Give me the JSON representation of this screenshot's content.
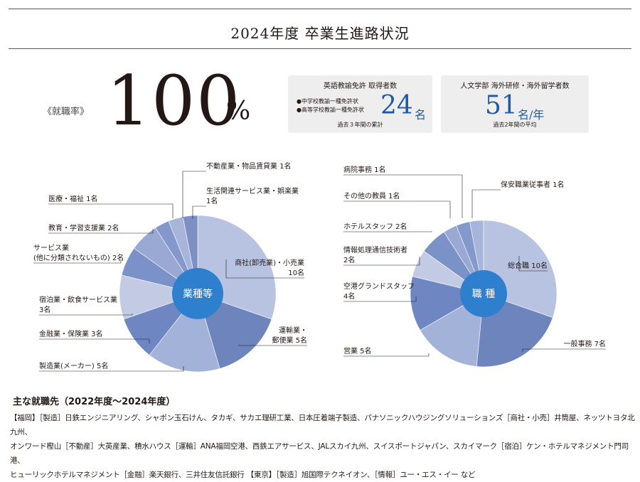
{
  "title": "2024年度 卒業生進路状況",
  "employment": {
    "label": "《就職率》",
    "value": "100",
    "unit": "%"
  },
  "english_license": {
    "title": "英語教諭免許 取得者数",
    "items": [
      "●中学校教諭一種免許状",
      "●高等学校教諭一種免許状"
    ],
    "value": "24",
    "unit": "名",
    "note": "過去３年間の累計"
  },
  "study_abroad": {
    "title": "人文学部 海外研修・海外留学者数",
    "value": "51",
    "unit": "名/年",
    "note": "過去2年間の平均"
  },
  "chart_data": [
    {
      "type": "pie",
      "center_label": "業種等",
      "labels": [
        "商社(卸売業)・小売業 10名",
        "運輸業・郵便業 5名",
        "製造業(メーカー) 5名",
        "金融業・保険業 3名",
        "宿泊業・飲食サービス業 3名",
        "サービス業(他に分類されないもの) 2名",
        "教育・学習支援業 2名",
        "医療・福祉 1名",
        "不動産業・物品賃貸業 1名",
        "生活関連サービス業・娯楽業 1名"
      ],
      "values": [
        10,
        5,
        5,
        3,
        3,
        2,
        2,
        1,
        1,
        1
      ]
    },
    {
      "type": "pie",
      "center_label": "職 種",
      "labels": [
        "総合職 10名",
        "一般事務 7名",
        "営業 5名",
        "空港グランドスタッフ 4名",
        "情報処理通信技術者 2名",
        "ホテルスタッフ 2名",
        "その他の教員 1名",
        "病院事務 1名",
        "保安職業従事者 1名"
      ],
      "values": [
        10,
        7,
        5,
        4,
        2,
        2,
        1,
        1,
        1
      ]
    }
  ],
  "industry_labels": [
    [
      "商社(卸売業)・小売業",
      "10名"
    ],
    [
      "運輸業・",
      "郵便業 5名"
    ],
    [
      "製造業(メーカー) 5名"
    ],
    [
      "金融業・保険業 3名"
    ],
    [
      "宿泊業・飲食サービス業",
      "3名"
    ],
    [
      "サービス業",
      "(他に分類されないもの) 2名"
    ],
    [
      "教育・学習支援業 2名"
    ],
    [
      "医療・福祉 1名"
    ],
    [
      "不動産業・物品賃貸業 1名"
    ],
    [
      "生活関連サービス業・娯楽業",
      "1名"
    ]
  ],
  "job_labels": [
    [
      "総合職 10名"
    ],
    [
      "一般事務 7名"
    ],
    [
      "営業 5名"
    ],
    [
      "空港グランドスタッフ",
      "4名"
    ],
    [
      "情報処理通信技術者",
      "2名"
    ],
    [
      "ホテルスタッフ 2名"
    ],
    [
      "その他の教員 1名"
    ],
    [
      "病院事務 1名"
    ],
    [
      "保安職業従事者 1名"
    ]
  ],
  "colors": [
    "#b7c3e0",
    "#6d84bc",
    "#a2b2d9",
    "#6e86c1",
    "#c2cbe3",
    "#7b92c8",
    "#99a9d4",
    "#8598cc",
    "#a7b5da",
    "#7d8fc3"
  ],
  "center_color": "#2f7fcf",
  "employers": {
    "heading": "主な就職先（2022年度〜2024年度）",
    "lines": [
      "【福岡】［製造］日鉄エンジニアリング、シャボン玉石けん、タカギ、サカエ理研工業、日本圧着端子製造、パナソニックハウジングソリューションズ［商社・小売］井筒屋、ネッツトヨタ北九州、",
      "オンワード樫山［不動産］大英産業、積水ハウス［運輸］ANA福岡空港、西鉄エアサービス、JALスカイ九州、スイスポートジャパン、スカイマーク［宿泊］ケン・ホテルマネジメント門司港、",
      "ヒューリックホテルマネジメント［金融］楽天銀行、三井住友信託銀行 【東京】［製造］旭国際テクネイオン、［情報］ユー・エス・イー など"
    ]
  }
}
